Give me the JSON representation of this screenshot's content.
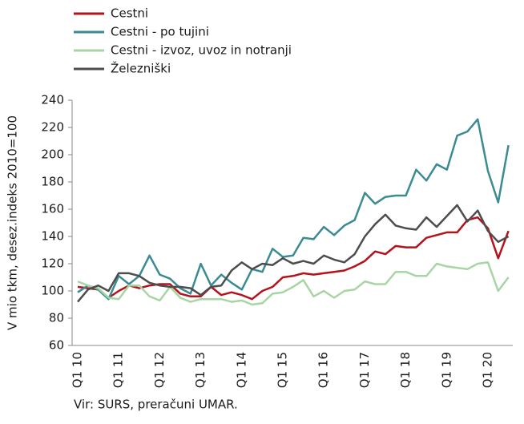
{
  "chart_data": {
    "type": "line",
    "ylabel": "V mio tkm, desez.indeks 2010=100",
    "source": "Vir: SURS, preračuni UMAR.",
    "categories": [
      "Q1 10",
      null,
      null,
      null,
      "Q1 11",
      null,
      null,
      null,
      "Q1 12",
      null,
      null,
      null,
      "Q1 13",
      null,
      null,
      null,
      "Q1 14",
      null,
      null,
      null,
      "Q1 15",
      null,
      null,
      null,
      "Q1 16",
      null,
      null,
      null,
      "Q1 17",
      null,
      null,
      null,
      "Q1 18",
      null,
      null,
      null,
      "Q1 19",
      null,
      null,
      null,
      "Q1 20",
      null,
      null
    ],
    "series": [
      {
        "name": "Cestni",
        "color": "#b5121b",
        "values": [
          103,
          102,
          101,
          95,
          100,
          104,
          102,
          104,
          105,
          105,
          98,
          96,
          96,
          103,
          97,
          99,
          97,
          94,
          100,
          103,
          110,
          111,
          113,
          112,
          113,
          114,
          115,
          118,
          122,
          129,
          127,
          133,
          132,
          132,
          139,
          141,
          143,
          143,
          152,
          154,
          146,
          124,
          144
        ]
      },
      {
        "name": "Cestni - po tujini",
        "color": "#3b8b93",
        "values": [
          99,
          104,
          101,
          94,
          111,
          105,
          111,
          126,
          112,
          109,
          102,
          98,
          120,
          104,
          112,
          106,
          101,
          116,
          114,
          131,
          125,
          126,
          139,
          138,
          147,
          141,
          148,
          152,
          172,
          164,
          169,
          170,
          170,
          189,
          181,
          193,
          189,
          214,
          217,
          226,
          188,
          165,
          207
        ]
      },
      {
        "name": "Cestni - izvoz, uvoz in notranji",
        "color": "#a8d5a4",
        "values": [
          107,
          104,
          102,
          95,
          94,
          104,
          104,
          96,
          93,
          103,
          95,
          92,
          94,
          94,
          94,
          92,
          93,
          90,
          91,
          98,
          99,
          103,
          108,
          96,
          100,
          95,
          100,
          101,
          107,
          105,
          105,
          114,
          114,
          111,
          111,
          120,
          118,
          117,
          116,
          120,
          121,
          100,
          110
        ]
      },
      {
        "name": "Železniški",
        "color": "#4d4d4d",
        "values": [
          92,
          101,
          104,
          100,
          113,
          113,
          111,
          106,
          104,
          103,
          103,
          102,
          97,
          103,
          104,
          115,
          121,
          116,
          120,
          119,
          124,
          120,
          122,
          120,
          126,
          123,
          121,
          127,
          140,
          149,
          156,
          148,
          146,
          145,
          154,
          147,
          155,
          163,
          151,
          159,
          144,
          136,
          140
        ]
      }
    ],
    "ylim": [
      60,
      240
    ],
    "yticks": [
      60,
      80,
      100,
      120,
      140,
      160,
      180,
      200,
      220,
      240
    ]
  }
}
